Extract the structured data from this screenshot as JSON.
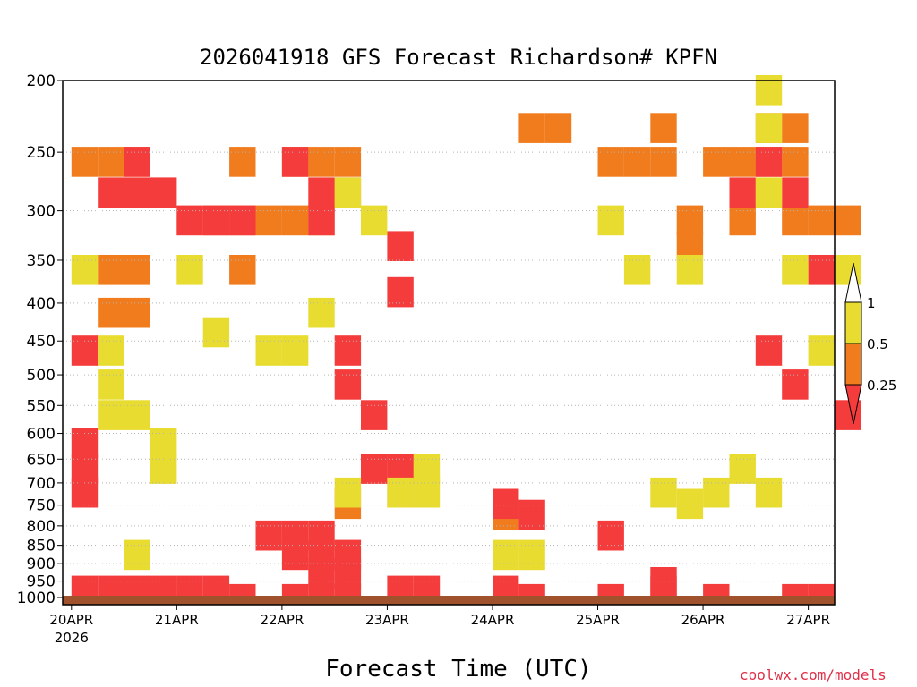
{
  "chart_data": {
    "type": "heatmap",
    "title": "2026041918 GFS Forecast Richardson# KPFN",
    "xlabel": "Forecast Time (UTC)",
    "ylabel": "",
    "y_axis": {
      "scale": "log",
      "inverted": true,
      "range": [
        200,
        1000
      ],
      "ticks": [
        200,
        250,
        300,
        350,
        400,
        450,
        500,
        550,
        600,
        650,
        700,
        750,
        800,
        850,
        900,
        950,
        1000
      ]
    },
    "x_axis": {
      "range": [
        "2026-04-19 22:00",
        "2026-04-27 06:00"
      ],
      "ticks": [
        "2026-04-20 00:00",
        "2026-04-21 00:00",
        "2026-04-22 00:00",
        "2026-04-23 00:00",
        "2026-04-24 00:00",
        "2026-04-25 00:00",
        "2026-04-26 00:00",
        "2026-04-27 00:00"
      ],
      "tick_labels": [
        "20APR",
        "21APR",
        "22APR",
        "23APR",
        "24APR",
        "25APR",
        "26APR",
        "27APR"
      ],
      "secondary_label": "2026"
    },
    "grid": true,
    "legend": {
      "placement": "right",
      "thresholds": [
        "1",
        "0.5",
        "0.25"
      ],
      "colors": [
        "#ffffff",
        "#e8dc30",
        "#f07c1e",
        "#f43c3c"
      ]
    },
    "series": [
      {
        "value_class": "0.25-0.5",
        "color": "#f07c1e",
        "cells": [
          [
            "2026-04-20 00:00",
            250
          ],
          [
            "2026-04-20 06:00",
            250
          ],
          [
            "2026-04-20 12:00",
            250
          ],
          [
            "2026-04-20 12:00",
            350
          ],
          [
            "2026-04-20 06:00",
            350
          ],
          [
            "2026-04-20 06:00",
            400
          ],
          [
            "2026-04-20 12:00",
            400
          ],
          [
            "2026-04-21 06:00",
            300
          ],
          [
            "2026-04-21 12:00",
            300
          ],
          [
            "2026-04-21 12:00",
            250
          ],
          [
            "2026-04-21 18:00",
            300
          ],
          [
            "2026-04-21 12:00",
            350
          ],
          [
            "2026-04-22 00:00",
            250
          ],
          [
            "2026-04-22 00:00",
            300
          ],
          [
            "2026-04-22 06:00",
            300
          ],
          [
            "2026-04-22 06:00",
            250
          ],
          [
            "2026-04-22 12:00",
            250
          ],
          [
            "2026-04-23 00:00",
            650
          ],
          [
            "2026-04-23 00:00",
            700
          ],
          [
            "2026-04-22 12:00",
            725
          ],
          [
            "2026-04-24 00:00",
            725
          ],
          [
            "2026-04-24 00:00",
            750
          ],
          [
            "2026-04-24 06:00",
            225
          ],
          [
            "2026-04-24 12:00",
            225
          ],
          [
            "2026-04-25 00:00",
            250
          ],
          [
            "2026-04-25 06:00",
            250
          ],
          [
            "2026-04-25 12:00",
            250
          ],
          [
            "2026-04-25 12:00",
            225
          ],
          [
            "2026-04-25 18:00",
            300
          ],
          [
            "2026-04-25 18:00",
            325
          ],
          [
            "2026-04-26 06:00",
            300
          ],
          [
            "2026-04-26 18:00",
            250
          ],
          [
            "2026-04-26 18:00",
            225
          ],
          [
            "2026-04-26 18:00",
            300
          ],
          [
            "2026-04-27 00:00",
            300
          ],
          [
            "2026-04-27 06:00",
            300
          ],
          [
            "2026-04-26 00:00",
            250
          ],
          [
            "2026-04-26 06:00",
            250
          ],
          [
            "2026-04-26 12:00",
            250
          ],
          [
            "2026-04-26 12:00",
            225
          ]
        ]
      },
      {
        "value_class": "0-0.25",
        "color": "#f43c3c",
        "cells": [
          [
            "2026-04-20 06:00",
            275
          ],
          [
            "2026-04-20 12:00",
            275
          ],
          [
            "2026-04-20 12:00",
            250
          ],
          [
            "2026-04-20 18:00",
            275
          ],
          [
            "2026-04-21 00:00",
            300
          ],
          [
            "2026-04-21 06:00",
            300
          ],
          [
            "2026-04-21 12:00",
            300
          ],
          [
            "2026-04-22 00:00",
            250
          ],
          [
            "2026-04-22 06:00",
            300
          ],
          [
            "2026-04-22 06:00",
            275
          ],
          [
            "2026-04-22 12:00",
            275
          ],
          [
            "2026-04-23 00:00",
            375
          ],
          [
            "2026-04-23 00:00",
            325
          ],
          [
            "2026-04-22 12:00",
            450
          ],
          [
            "2026-04-22 12:00",
            500
          ],
          [
            "2026-04-22 18:00",
            550
          ],
          [
            "2026-04-22 18:00",
            650
          ],
          [
            "2026-04-23 00:00",
            650
          ],
          [
            "2026-04-20 00:00",
            600
          ],
          [
            "2026-04-20 00:00",
            650
          ],
          [
            "2026-04-20 00:00",
            700
          ],
          [
            "2026-04-20 00:00",
            450
          ],
          [
            "2026-04-21 18:00",
            800
          ],
          [
            "2026-04-22 00:00",
            800
          ],
          [
            "2026-04-22 00:00",
            850
          ],
          [
            "2026-04-22 06:00",
            800
          ],
          [
            "2026-04-22 06:00",
            850
          ],
          [
            "2026-04-22 06:00",
            900
          ],
          [
            "2026-04-22 12:00",
            850
          ],
          [
            "2026-04-22 12:00",
            900
          ],
          [
            "2026-04-24 00:00",
            725
          ],
          [
            "2026-04-24 06:00",
            750
          ],
          [
            "2026-04-25 00:00",
            800
          ],
          [
            "2026-04-25 12:00",
            925
          ],
          [
            "2026-04-26 06:00",
            275
          ],
          [
            "2026-04-26 18:00",
            275
          ],
          [
            "2026-04-26 12:00",
            250
          ],
          [
            "2026-04-27 00:00",
            350
          ],
          [
            "2026-04-26 12:00",
            450
          ],
          [
            "2026-04-26 18:00",
            500
          ],
          [
            "2026-04-27 06:00",
            550
          ],
          [
            "2026-04-20 00:00",
            950
          ],
          [
            "2026-04-20 06:00",
            950
          ],
          [
            "2026-04-20 12:00",
            950
          ],
          [
            "2026-04-20 18:00",
            950
          ],
          [
            "2026-04-21 00:00",
            950
          ],
          [
            "2026-04-21 06:00",
            950
          ],
          [
            "2026-04-21 12:00",
            975
          ],
          [
            "2026-04-22 00:00",
            975
          ],
          [
            "2026-04-22 06:00",
            975
          ],
          [
            "2026-04-22 12:00",
            975
          ],
          [
            "2026-04-23 00:00",
            950
          ],
          [
            "2026-04-23 06:00",
            950
          ],
          [
            "2026-04-24 00:00",
            950
          ],
          [
            "2026-04-24 06:00",
            975
          ],
          [
            "2026-04-25 00:00",
            975
          ],
          [
            "2026-04-25 12:00",
            950
          ],
          [
            "2026-04-26 00:00",
            975
          ],
          [
            "2026-04-26 18:00",
            975
          ],
          [
            "2026-04-27 00:00",
            975
          ]
        ]
      },
      {
        "value_class": "0.5-1",
        "color": "#e8dc30",
        "cells": [
          [
            "2026-04-20 00:00",
            350
          ],
          [
            "2026-04-20 06:00",
            450
          ],
          [
            "2026-04-20 06:00",
            500
          ],
          [
            "2026-04-20 06:00",
            550
          ],
          [
            "2026-04-20 12:00",
            550
          ],
          [
            "2026-04-20 18:00",
            600
          ],
          [
            "2026-04-20 18:00",
            650
          ],
          [
            "2026-04-20 12:00",
            850
          ],
          [
            "2026-04-21 00:00",
            350
          ],
          [
            "2026-04-21 06:00",
            425
          ],
          [
            "2026-04-21 18:00",
            450
          ],
          [
            "2026-04-22 00:00",
            450
          ],
          [
            "2026-04-22 06:00",
            400
          ],
          [
            "2026-04-22 12:00",
            700
          ],
          [
            "2026-04-23 00:00",
            700
          ],
          [
            "2026-04-23 06:00",
            700
          ],
          [
            "2026-04-23 06:00",
            650
          ],
          [
            "2026-04-22 12:00",
            275
          ],
          [
            "2026-04-22 18:00",
            300
          ],
          [
            "2026-04-25 00:00",
            300
          ],
          [
            "2026-04-25 06:00",
            350
          ],
          [
            "2026-04-25 18:00",
            350
          ],
          [
            "2026-04-26 12:00",
            200
          ],
          [
            "2026-04-26 12:00",
            225
          ],
          [
            "2026-04-26 12:00",
            275
          ],
          [
            "2026-04-26 18:00",
            350
          ],
          [
            "2026-04-27 06:00",
            350
          ],
          [
            "2026-04-27 00:00",
            450
          ],
          [
            "2026-04-26 00:00",
            700
          ],
          [
            "2026-04-26 06:00",
            650
          ],
          [
            "2026-04-26 12:00",
            700
          ],
          [
            "2026-04-25 12:00",
            700
          ],
          [
            "2026-04-25 18:00",
            725
          ],
          [
            "2026-04-24 00:00",
            850
          ],
          [
            "2026-04-24 06:00",
            850
          ]
        ]
      }
    ]
  },
  "credit": "coolwx.com/models"
}
